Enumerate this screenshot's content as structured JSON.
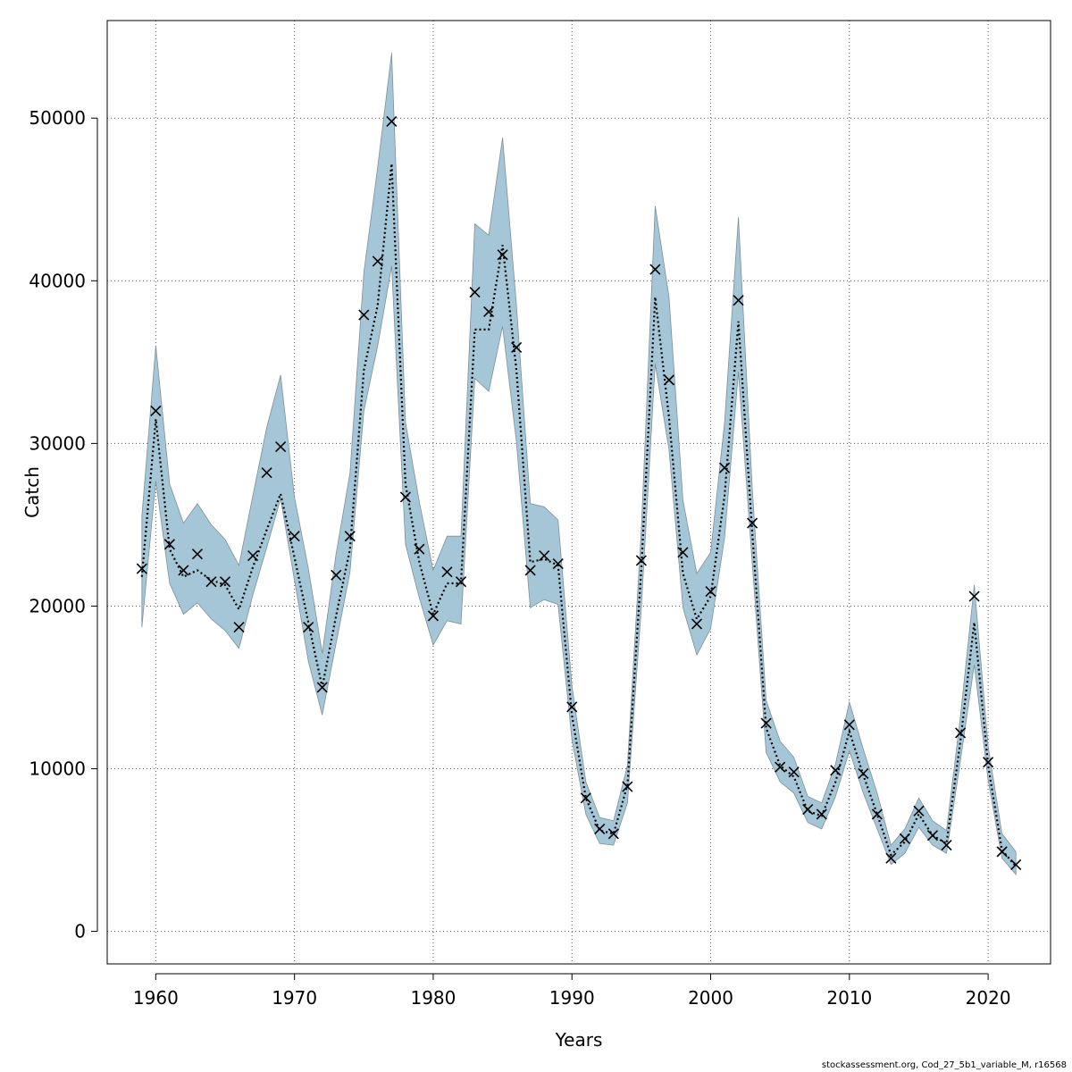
{
  "chart_data": {
    "type": "line",
    "xlabel": "Years",
    "ylabel": "Catch",
    "xlim": [
      1956.5,
      2024.5
    ],
    "ylim": [
      -2000,
      56000
    ],
    "x_ticks": [
      1960,
      1970,
      1980,
      1990,
      2000,
      2010,
      2020
    ],
    "y_ticks": [
      0,
      10000,
      20000,
      30000,
      40000,
      50000
    ],
    "grid": true,
    "colors": {
      "band": "#a5c6d7",
      "band_edge": "#7f8f99",
      "line": "#000000",
      "grid": "#555555"
    },
    "years": [
      1959,
      1960,
      1961,
      1962,
      1963,
      1964,
      1965,
      1966,
      1967,
      1968,
      1969,
      1970,
      1971,
      1972,
      1973,
      1974,
      1975,
      1976,
      1977,
      1978,
      1979,
      1980,
      1981,
      1982,
      1983,
      1984,
      1985,
      1986,
      1987,
      1988,
      1989,
      1990,
      1991,
      1992,
      1993,
      1994,
      1995,
      1996,
      1997,
      1998,
      1999,
      2000,
      2001,
      2002,
      2003,
      2004,
      2005,
      2006,
      2007,
      2008,
      2009,
      2010,
      2011,
      2012,
      2013,
      2014,
      2015,
      2016,
      2017,
      2018,
      2019,
      2020,
      2021,
      2022
    ],
    "series": [
      {
        "values": [
          21800,
          31500,
          23500,
          21800,
          22200,
          21600,
          21300,
          19800,
          22400,
          24700,
          26900,
          23000,
          19000,
          15000,
          19400,
          23500,
          34500,
          38500,
          47200,
          27500,
          22700,
          19500,
          21400,
          21400,
          37000,
          37000,
          42200,
          34500,
          22700,
          22900,
          22500,
          13300,
          8200,
          6200,
          6000,
          9000,
          22300,
          39000,
          31600,
          22000,
          19200,
          20600,
          26800,
          37500,
          24500,
          12500,
          10200,
          9500,
          7400,
          7100,
          9200,
          12300,
          9600,
          7200,
          4700,
          5500,
          7200,
          5900,
          5400,
          11700,
          19000,
          10200,
          5000,
          4000
        ],
        "upper": [
          25500,
          36000,
          27500,
          25100,
          26300,
          25000,
          24100,
          22500,
          26800,
          31000,
          34200,
          26700,
          22300,
          17100,
          23200,
          28200,
          40500,
          47000,
          54000,
          31300,
          26400,
          22200,
          24300,
          24300,
          43500,
          42800,
          48800,
          38500,
          26300,
          26100,
          25300,
          15100,
          9200,
          7000,
          6800,
          10200,
          24700,
          44600,
          39000,
          26500,
          22000,
          23300,
          31300,
          43900,
          27200,
          14200,
          11700,
          10700,
          8300,
          7900,
          10300,
          14100,
          11200,
          8500,
          5300,
          6300,
          8200,
          6800,
          6200,
          13200,
          21300,
          11400,
          6000,
          4900
        ],
        "lower": [
          18700,
          27700,
          21400,
          19500,
          20200,
          19200,
          18500,
          17400,
          20700,
          23600,
          26600,
          21600,
          16600,
          13300,
          17700,
          22100,
          32000,
          36000,
          40900,
          23800,
          20500,
          17600,
          19100,
          18900,
          34000,
          33200,
          37200,
          30100,
          19900,
          20400,
          20100,
          11800,
          7200,
          5400,
          5300,
          7900,
          19900,
          34900,
          29600,
          19900,
          17000,
          18600,
          24200,
          34400,
          22600,
          11000,
          9200,
          8500,
          6700,
          6300,
          8300,
          11100,
          8500,
          6300,
          4100,
          4800,
          6400,
          5300,
          4800,
          10500,
          16400,
          9300,
          4500,
          3500
        ]
      }
    ],
    "observed": [
      22300,
      32000,
      23800,
      22200,
      23200,
      21500,
      21500,
      18700,
      23100,
      28200,
      29800,
      24300,
      18700,
      15000,
      21900,
      24300,
      37900,
      41200,
      49800,
      26700,
      23500,
      19400,
      22100,
      21500,
      39300,
      38100,
      41600,
      35900,
      22200,
      23100,
      22600,
      13800,
      8200,
      6300,
      6000,
      8900,
      22800,
      40700,
      33900,
      23300,
      18900,
      20900,
      28500,
      38800,
      25100,
      12800,
      10100,
      9800,
      7500,
      7200,
      9900,
      12700,
      9700,
      7200,
      4500,
      5700,
      7400,
      5900,
      5300,
      12200,
      20600,
      10400,
      4900,
      4100
    ]
  },
  "footer": "stockassessment.org, Cod_27_5b1_variable_M, r16568"
}
